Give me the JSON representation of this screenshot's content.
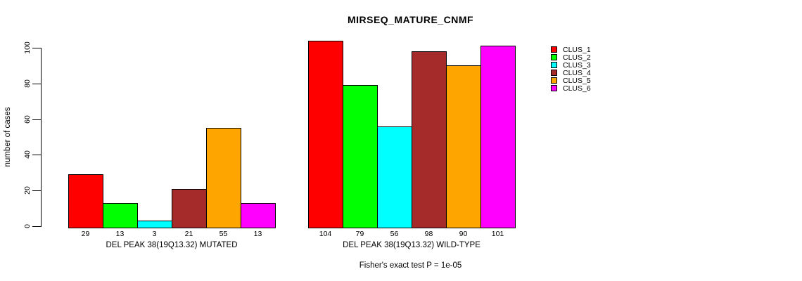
{
  "figure": {
    "title": "MIRSEQ_MATURE_CNMF",
    "y_axis_label": "number of cases",
    "caption": "Fisher's exact test P = 1e-05"
  },
  "chart_data": {
    "type": "bar",
    "title": "MIRSEQ_MATURE_CNMF",
    "xlabel": "",
    "ylabel": "number of cases",
    "ylim": [
      0,
      100
    ],
    "yticks": [
      0,
      20,
      40,
      60,
      80,
      100
    ],
    "grid": false,
    "legend_position": "top-right",
    "categories": [
      "DEL PEAK 38(19Q13.32) MUTATED",
      "DEL PEAK 38(19Q13.32) WILD-TYPE"
    ],
    "series": [
      {
        "name": "CLUS_1",
        "color": "#ff0000",
        "values": [
          29,
          104
        ]
      },
      {
        "name": "CLUS_2",
        "color": "#00ff00",
        "values": [
          13,
          79
        ]
      },
      {
        "name": "CLUS_3",
        "color": "#00ffff",
        "values": [
          3,
          56
        ]
      },
      {
        "name": "CLUS_4",
        "color": "#a52a2a",
        "values": [
          21,
          98
        ]
      },
      {
        "name": "CLUS_5",
        "color": "#ffa500",
        "values": [
          55,
          90
        ]
      },
      {
        "name": "CLUS_6",
        "color": "#ff00ff",
        "values": [
          13,
          101
        ]
      }
    ],
    "bar_value_labels": [
      [
        29,
        13,
        3,
        21,
        55,
        13
      ],
      [
        104,
        79,
        56,
        98,
        90,
        101
      ]
    ],
    "annotation": "Fisher's exact test P = 1e-05"
  }
}
